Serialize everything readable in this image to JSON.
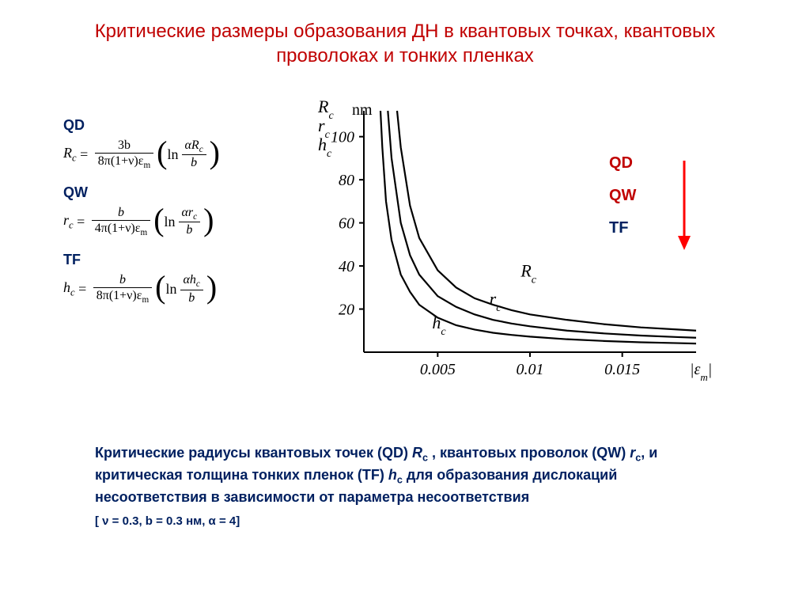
{
  "title": "Критические размеры образования ДН в квантовых точках, квантовых проволоках и тонких пленках",
  "title_color": "#c00000",
  "formulas": {
    "labels": {
      "qd": "QD",
      "qw": "QW",
      "tf": "TF"
    },
    "label_color": "#002060",
    "qd": {
      "lhs": "R",
      "lhs_sub": "c",
      "num": "3b",
      "den_coef": "8π(1+ν)ε",
      "den_sub": "m",
      "ln": "ln",
      "argnum": "αR",
      "argnum_sub": "c",
      "argden": "b"
    },
    "qw": {
      "lhs": "r",
      "lhs_sub": "c",
      "num": "b",
      "den_coef": "4π(1+ν)ε",
      "den_sub": "m",
      "ln": "ln",
      "argnum": "αr",
      "argnum_sub": "c",
      "argden": "b"
    },
    "tf": {
      "lhs": "h",
      "lhs_sub": "c",
      "num": "b",
      "den_coef": "8π(1+ν)ε",
      "den_sub": "m",
      "ln": "ln",
      "argnum": "αh",
      "argnum_sub": "c",
      "argden": "b"
    }
  },
  "chart": {
    "type": "line",
    "y_axis_labels": [
      "R",
      "r",
      "h"
    ],
    "y_axis_sub": "c",
    "y_unit": "nm",
    "x_axis_label": "|ε_m|",
    "xlim": [
      0.001,
      0.019
    ],
    "ylim": [
      0,
      112
    ],
    "yticks": [
      20,
      40,
      60,
      80,
      100
    ],
    "xticks": [
      0.005,
      0.01,
      0.015
    ],
    "xtick_labels": [
      "0.005",
      "0.01",
      "0.015"
    ],
    "line_color": "#000000",
    "line_width": 2.2,
    "background_color": "#ffffff",
    "axis_color": "#000000",
    "tick_fontsize": 20,
    "label_fontsize": 22,
    "curves": {
      "Rc": {
        "label": "R_c",
        "points": [
          [
            0.0028,
            112
          ],
          [
            0.003,
            95
          ],
          [
            0.0035,
            68
          ],
          [
            0.004,
            53
          ],
          [
            0.005,
            38
          ],
          [
            0.006,
            30
          ],
          [
            0.007,
            25
          ],
          [
            0.008,
            22
          ],
          [
            0.009,
            19.5
          ],
          [
            0.01,
            17.5
          ],
          [
            0.012,
            15
          ],
          [
            0.014,
            13
          ],
          [
            0.016,
            11.5
          ],
          [
            0.018,
            10.5
          ],
          [
            0.019,
            10
          ]
        ]
      },
      "rc": {
        "label": "r_c",
        "points": [
          [
            0.0023,
            112
          ],
          [
            0.0025,
            90
          ],
          [
            0.003,
            60
          ],
          [
            0.0035,
            45
          ],
          [
            0.004,
            36
          ],
          [
            0.005,
            26
          ],
          [
            0.006,
            21
          ],
          [
            0.007,
            17.5
          ],
          [
            0.008,
            15
          ],
          [
            0.009,
            13.3
          ],
          [
            0.01,
            12
          ],
          [
            0.012,
            10
          ],
          [
            0.014,
            8.7
          ],
          [
            0.016,
            7.7
          ],
          [
            0.018,
            7
          ],
          [
            0.019,
            6.7
          ]
        ]
      },
      "hc": {
        "label": "h_c",
        "points": [
          [
            0.0019,
            112
          ],
          [
            0.002,
            95
          ],
          [
            0.0022,
            70
          ],
          [
            0.0025,
            52
          ],
          [
            0.003,
            36
          ],
          [
            0.0035,
            28
          ],
          [
            0.004,
            22
          ],
          [
            0.005,
            16
          ],
          [
            0.006,
            12.5
          ],
          [
            0.007,
            10.5
          ],
          [
            0.008,
            9
          ],
          [
            0.009,
            8
          ],
          [
            0.01,
            7.2
          ],
          [
            0.012,
            6
          ],
          [
            0.014,
            5.2
          ],
          [
            0.016,
            4.6
          ],
          [
            0.018,
            4.2
          ],
          [
            0.019,
            4
          ]
        ]
      }
    },
    "curve_label_positions": {
      "Rc": {
        "x": 0.0095,
        "y": 35
      },
      "rc": {
        "x": 0.0078,
        "y": 22
      },
      "hc": {
        "x": 0.0047,
        "y": 11
      }
    }
  },
  "legend": {
    "items": [
      "QD",
      "QW",
      "TF"
    ],
    "colors": [
      "#c00000",
      "#c00000",
      "#002060"
    ],
    "arrow_color": "#ff0000"
  },
  "caption": {
    "text_parts": {
      "p1": "Критические радиусы квантовых точек (QD) ",
      "r": "R",
      "rc": "c",
      "p2": " , квантовых проволок (QW) ",
      "rr": "r",
      "rrc": "c",
      "p3": ", и критическая толщина тонких пленок (TF) ",
      "h": "h",
      "hc": "c",
      "p4": " для образования дислокаций несоответствия в зависимости от параметра несоответствия"
    },
    "color": "#002060",
    "params": "[ ν = 0.3, b = 0.3 нм, α = 4]"
  }
}
